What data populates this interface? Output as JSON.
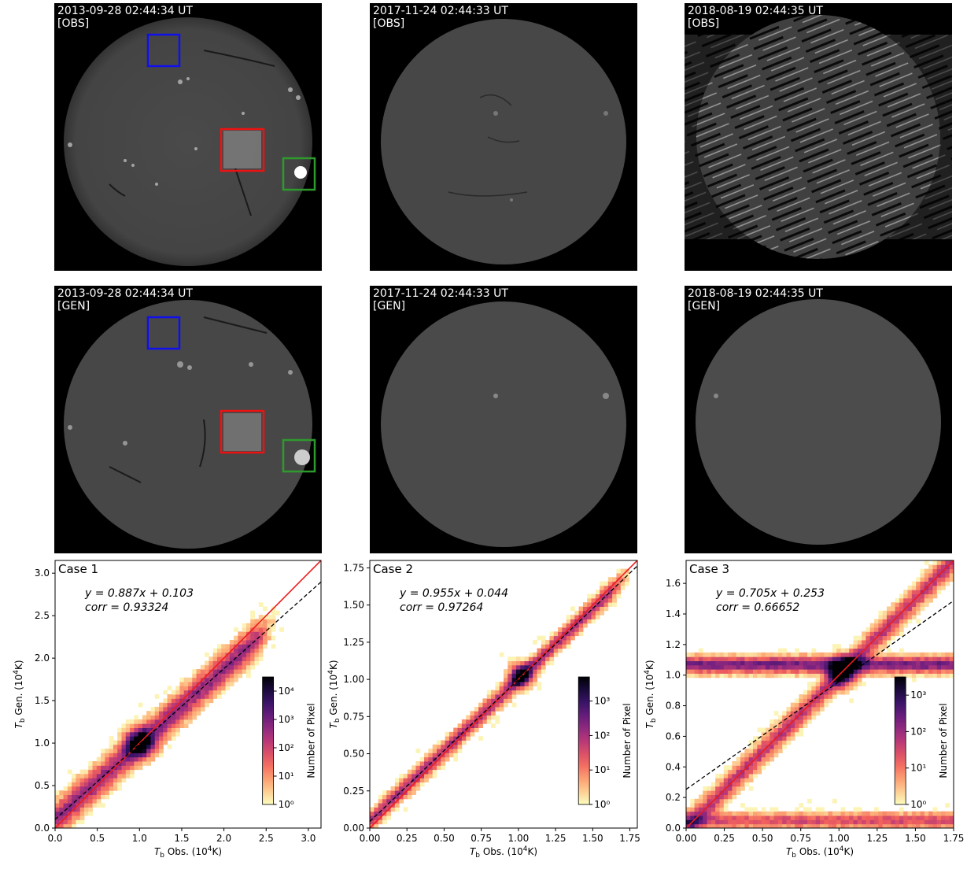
{
  "colors": {
    "box_blue": "#1010ee",
    "box_red": "#ee1111",
    "box_green": "#2e9a2e",
    "identity_line": "#ee1c1c",
    "fit_line": "#000000"
  },
  "image_rows": [
    {
      "row_label": "[OBS]",
      "panels": [
        {
          "timestamp": "2013-09-28 02:44:34 UT",
          "label": "[OBS]"
        },
        {
          "timestamp": "2017-11-24 02:44:33 UT",
          "label": "[OBS]"
        },
        {
          "timestamp": "2018-08-19 02:44:35 UT",
          "label": "[OBS]"
        }
      ]
    },
    {
      "row_label": "[GEN]",
      "panels": [
        {
          "timestamp": "2013-09-28 02:44:34 UT",
          "label": "[GEN]"
        },
        {
          "timestamp": "2017-11-24 02:44:33 UT",
          "label": "[GEN]"
        },
        {
          "timestamp": "2018-08-19 02:44:35 UT",
          "label": "[GEN]"
        }
      ]
    }
  ],
  "chart_data": [
    {
      "type": "heatmap",
      "title": "Case 1",
      "equation_y": "y = 0.887x + 0.103",
      "equation_corr": "corr = 0.93324",
      "slope": 0.887,
      "intercept": 0.103,
      "corr": 0.93324,
      "xlabel": "T_b Obs. (10^4K)",
      "ylabel": "T_b Gen. (10^4K)",
      "xlim": [
        0,
        3.15
      ],
      "ylim": [
        0,
        3.15
      ],
      "xticks": [
        "0.0",
        "0.5",
        "1.0",
        "1.5",
        "2.0",
        "2.5",
        "3.0"
      ],
      "xtick_values": [
        0,
        0.5,
        1.0,
        1.5,
        2.0,
        2.5,
        3.0
      ],
      "yticks": [
        "0.0",
        "0.5",
        "1.0",
        "1.5",
        "2.0",
        "2.5",
        "3.0"
      ],
      "ytick_values": [
        0,
        0.5,
        1.0,
        1.5,
        2.0,
        2.5,
        3.0
      ],
      "colorbar_label": "Number of Pixel",
      "colorbar_ticks": [
        "10⁰",
        "10¹",
        "10²",
        "10³",
        "10⁴"
      ],
      "colorbar_range_log": [
        0,
        4.5
      ],
      "density_peak": [
        1.0,
        1.0
      ]
    },
    {
      "type": "heatmap",
      "title": "Case 2",
      "equation_y": "y = 0.955x + 0.044",
      "equation_corr": "corr = 0.97264",
      "slope": 0.955,
      "intercept": 0.044,
      "corr": 0.97264,
      "xlabel": "T_b Obs. (10^4K)",
      "ylabel": "T_b Gen. (10^4K)",
      "xlim": [
        0,
        1.8
      ],
      "ylim": [
        0,
        1.8
      ],
      "xticks": [
        "0.00",
        "0.25",
        "0.50",
        "0.75",
        "1.00",
        "1.25",
        "1.50",
        "1.75"
      ],
      "xtick_values": [
        0,
        0.25,
        0.5,
        0.75,
        1.0,
        1.25,
        1.5,
        1.75
      ],
      "yticks": [
        "0.00",
        "0.25",
        "0.50",
        "0.75",
        "1.00",
        "1.25",
        "1.50",
        "1.75"
      ],
      "ytick_values": [
        0,
        0.25,
        0.5,
        0.75,
        1.0,
        1.25,
        1.5,
        1.75
      ],
      "colorbar_label": "Number of Pixel",
      "colorbar_ticks": [
        "10⁰",
        "10¹",
        "10²",
        "10³"
      ],
      "colorbar_range_log": [
        0,
        3.7
      ],
      "density_peak": [
        1.02,
        1.03
      ]
    },
    {
      "type": "heatmap",
      "title": "Case 3",
      "equation_y": "y = 0.705x + 0.253",
      "equation_corr": "corr = 0.66652",
      "slope": 0.705,
      "intercept": 0.253,
      "corr": 0.66652,
      "xlabel": "T_b Obs. (10^4K)",
      "ylabel": "T_b Gen. (10^4K)",
      "xlim": [
        0,
        1.75
      ],
      "ylim": [
        0,
        1.75
      ],
      "xticks": [
        "0.00",
        "0.25",
        "0.50",
        "0.75",
        "1.00",
        "1.25",
        "1.50",
        "1.75"
      ],
      "xtick_values": [
        0,
        0.25,
        0.5,
        0.75,
        1.0,
        1.25,
        1.5,
        1.75
      ],
      "yticks": [
        "0.0",
        "0.2",
        "0.4",
        "0.6",
        "0.8",
        "1.0",
        "1.2",
        "1.4",
        "1.6"
      ],
      "ytick_values": [
        0,
        0.2,
        0.4,
        0.6,
        0.8,
        1.0,
        1.2,
        1.4,
        1.6
      ],
      "colorbar_label": "Number of Pixel",
      "colorbar_ticks": [
        "10⁰",
        "10¹",
        "10²",
        "10³"
      ],
      "colorbar_range_log": [
        0,
        3.5
      ],
      "density_peak": [
        1.02,
        1.02
      ]
    }
  ]
}
